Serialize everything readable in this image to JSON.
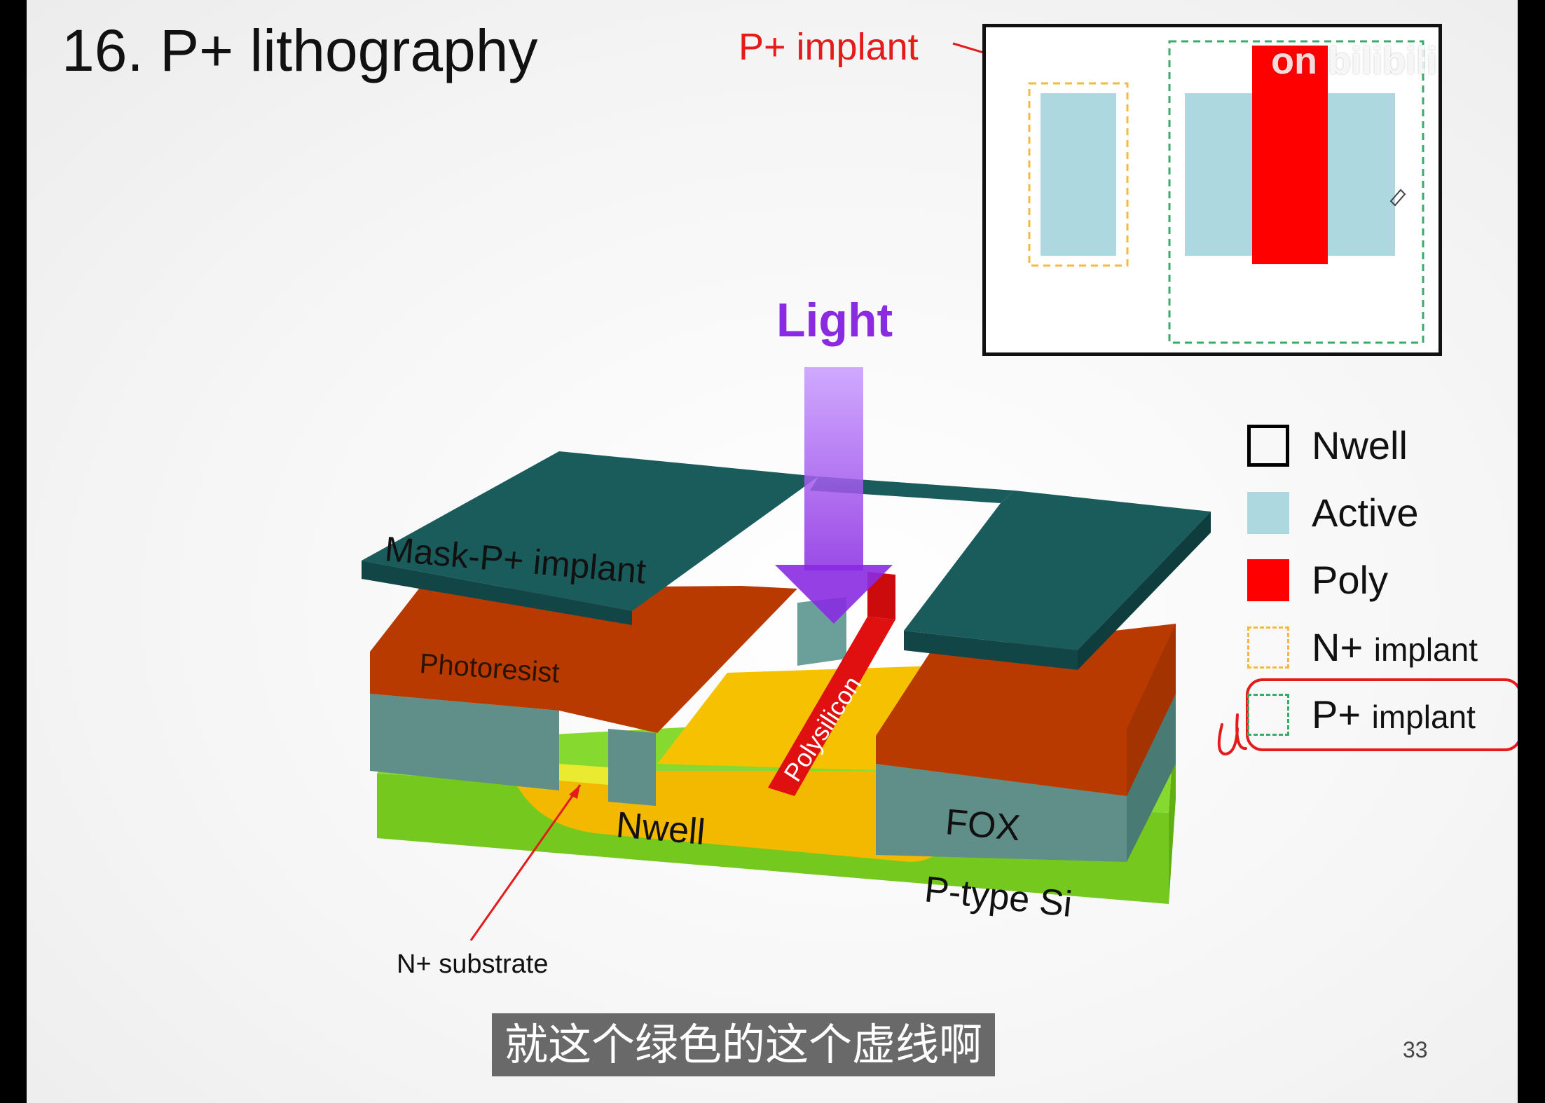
{
  "slide": {
    "title": "16. P+ lithography",
    "page_number": "33",
    "watermark": "on bilibili"
  },
  "inset": {
    "callout_label": "P+ implant"
  },
  "light": {
    "label": "Light"
  },
  "cross_section": {
    "labels": {
      "mask": "Mask-P+ implant",
      "photoresist": "Photoresist",
      "polysilicon": "Polysilicon",
      "nwell": "Nwell",
      "fox": "FOX",
      "substrate": "P-type Si",
      "n_plus_substrate": "N+ substrate"
    }
  },
  "legend": {
    "items": [
      {
        "label": "Nwell",
        "suffix": "",
        "color": "#000000",
        "style": "outline"
      },
      {
        "label": "Active",
        "suffix": "",
        "color": "#add8e0",
        "style": "fill"
      },
      {
        "label": "Poly",
        "suffix": "",
        "color": "#ff0000",
        "style": "fill"
      },
      {
        "label": "N+",
        "suffix": "implant",
        "color": "#f5b942",
        "style": "dashed"
      },
      {
        "label": "P+",
        "suffix": "implant",
        "color": "#3aaa6a",
        "style": "dashed"
      }
    ]
  },
  "subtitle": {
    "text": "就这个绿色的这个虚线啊"
  },
  "colors": {
    "mask": "#1a5c5c",
    "photoresist": "#c43d00",
    "fox": "#5f8f88",
    "nwell": "#f3b800",
    "substrate": "#7ed321",
    "poly": "#e01010",
    "light": "#9b4dff",
    "annotation": "#e41b1b"
  }
}
